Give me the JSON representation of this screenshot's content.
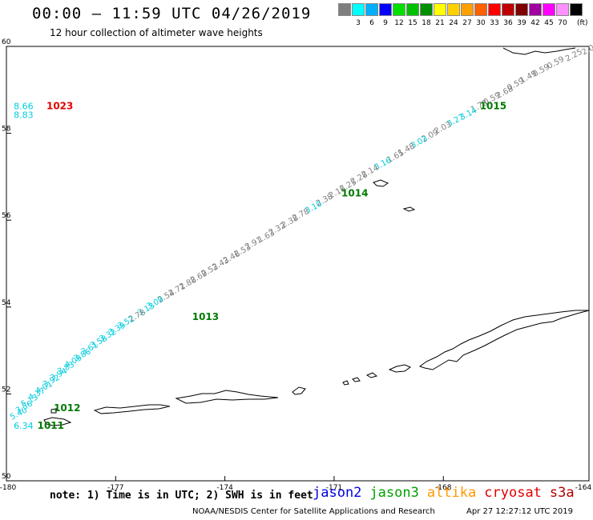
{
  "header": {
    "title": "00:00 – 11:59 UTC 04/26/2019",
    "subtitle": "12 hour collection of altimeter wave heights"
  },
  "color_legend": {
    "unit": "(ft)",
    "bins": [
      {
        "label": "",
        "color": "#7f7f7f"
      },
      {
        "label": "3",
        "color": "#00ffff"
      },
      {
        "label": "6",
        "color": "#00b0ff"
      },
      {
        "label": "9",
        "color": "#0000ff"
      },
      {
        "label": "12",
        "color": "#00e000"
      },
      {
        "label": "15",
        "color": "#00c000"
      },
      {
        "label": "18",
        "color": "#009000"
      },
      {
        "label": "21",
        "color": "#ffff00"
      },
      {
        "label": "24",
        "color": "#ffd000"
      },
      {
        "label": "27",
        "color": "#ffa000"
      },
      {
        "label": "30",
        "color": "#ff6000"
      },
      {
        "label": "33",
        "color": "#ff0000"
      },
      {
        "label": "36",
        "color": "#c00000"
      },
      {
        "label": "39",
        "color": "#800000"
      },
      {
        "label": "42",
        "color": "#a000a0"
      },
      {
        "label": "45",
        "color": "#ff00ff"
      },
      {
        "label": "70",
        "color": "#ff90ff"
      },
      {
        "label": "",
        "color": "#000000"
      }
    ]
  },
  "map": {
    "lon_range": [
      -180,
      -164
    ],
    "lat_range": [
      50,
      60
    ],
    "lon_ticks": [
      "-180",
      "-177",
      "-174",
      "-171",
      "-168",
      "-164"
    ],
    "lat_ticks": [
      "60",
      "58",
      "56",
      "54",
      "52",
      "50"
    ],
    "colors": {
      "gray": "#808080",
      "cyan": "#00ccdd",
      "green": "#007a00",
      "red": "#e00000"
    },
    "pressure_labels": [
      {
        "text": "1023",
        "lon": -178.9,
        "lat": 58.55,
        "color": "red"
      },
      {
        "text": "1015",
        "lon": -167.0,
        "lat": 58.55,
        "color": "green"
      },
      {
        "text": "1014",
        "lon": -170.8,
        "lat": 56.55,
        "color": "green"
      },
      {
        "text": "1013",
        "lon": -174.9,
        "lat": 53.7,
        "color": "green"
      },
      {
        "text": "1012",
        "lon": -178.7,
        "lat": 51.6,
        "color": "green"
      },
      {
        "text": "1011",
        "lon": -179.15,
        "lat": 51.2,
        "color": "green"
      }
    ],
    "edge_values": [
      {
        "text": "8.66",
        "lon": -179.8,
        "lat": 58.55,
        "color": "cyan"
      },
      {
        "text": "8.83",
        "lon": -179.8,
        "lat": 58.35,
        "color": "cyan"
      },
      {
        "text": "6.34",
        "lon": -179.8,
        "lat": 51.2,
        "color": "cyan"
      }
    ],
    "track_values": [
      {
        "text": "2.0",
        "lon": -164.15,
        "lat": 59.8,
        "color": "gray"
      },
      {
        "text": "2.25",
        "lon": -164.6,
        "lat": 59.65,
        "color": "gray"
      },
      {
        "text": "0.59",
        "lon": -165.1,
        "lat": 59.48,
        "color": "gray"
      },
      {
        "text": "0.59",
        "lon": -165.5,
        "lat": 59.3,
        "color": "gray"
      },
      {
        "text": "1.49",
        "lon": -165.85,
        "lat": 59.15,
        "color": "gray"
      },
      {
        "text": "0.59",
        "lon": -166.2,
        "lat": 58.98,
        "color": "gray"
      },
      {
        "text": "2.68",
        "lon": -166.5,
        "lat": 58.8,
        "color": "gray"
      },
      {
        "text": "0.59",
        "lon": -166.85,
        "lat": 58.65,
        "color": "gray"
      },
      {
        "text": "1.78",
        "lon": -167.2,
        "lat": 58.48,
        "color": "gray"
      },
      {
        "text": "3.14",
        "lon": -167.5,
        "lat": 58.3,
        "color": "cyan"
      },
      {
        "text": "3.27",
        "lon": -167.85,
        "lat": 58.15,
        "color": "cyan"
      },
      {
        "text": "2.03",
        "lon": -168.2,
        "lat": 57.98,
        "color": "gray"
      },
      {
        "text": "2.09",
        "lon": -168.55,
        "lat": 57.8,
        "color": "gray"
      },
      {
        "text": "3.03",
        "lon": -168.85,
        "lat": 57.65,
        "color": "cyan"
      },
      {
        "text": "1.48",
        "lon": -169.2,
        "lat": 57.48,
        "color": "gray"
      },
      {
        "text": "1.65",
        "lon": -169.5,
        "lat": 57.32,
        "color": "gray"
      },
      {
        "text": "3.16",
        "lon": -169.85,
        "lat": 57.15,
        "color": "cyan"
      },
      {
        "text": "2.14",
        "lon": -170.2,
        "lat": 56.98,
        "color": "gray"
      },
      {
        "text": "2.28",
        "lon": -170.5,
        "lat": 56.82,
        "color": "gray"
      },
      {
        "text": "2.25",
        "lon": -170.8,
        "lat": 56.65,
        "color": "gray"
      },
      {
        "text": "2.16",
        "lon": -171.1,
        "lat": 56.5,
        "color": "gray"
      },
      {
        "text": "2.38",
        "lon": -171.45,
        "lat": 56.32,
        "color": "gray"
      },
      {
        "text": "3.10",
        "lon": -171.75,
        "lat": 56.15,
        "color": "cyan"
      },
      {
        "text": "2.78",
        "lon": -172.1,
        "lat": 55.98,
        "color": "gray"
      },
      {
        "text": "2.38",
        "lon": -172.4,
        "lat": 55.82,
        "color": "gray"
      },
      {
        "text": "2.32",
        "lon": -172.75,
        "lat": 55.65,
        "color": "gray"
      },
      {
        "text": "1.63",
        "lon": -173.05,
        "lat": 55.48,
        "color": "gray"
      },
      {
        "text": "2.91",
        "lon": -173.4,
        "lat": 55.32,
        "color": "gray"
      },
      {
        "text": "2.53",
        "lon": -173.7,
        "lat": 55.15,
        "color": "gray"
      },
      {
        "text": "2.46",
        "lon": -174.0,
        "lat": 55.0,
        "color": "gray"
      },
      {
        "text": "2.43",
        "lon": -174.3,
        "lat": 54.85,
        "color": "gray"
      },
      {
        "text": "2.53",
        "lon": -174.6,
        "lat": 54.7,
        "color": "gray"
      },
      {
        "text": "2.69",
        "lon": -174.9,
        "lat": 54.55,
        "color": "gray"
      },
      {
        "text": "2.88",
        "lon": -175.2,
        "lat": 54.4,
        "color": "gray"
      },
      {
        "text": "2.71",
        "lon": -175.5,
        "lat": 54.25,
        "color": "gray"
      },
      {
        "text": "2.54",
        "lon": -175.8,
        "lat": 54.1,
        "color": "gray"
      },
      {
        "text": "3.09",
        "lon": -176.1,
        "lat": 53.95,
        "color": "cyan"
      },
      {
        "text": "3.13",
        "lon": -176.35,
        "lat": 53.8,
        "color": "cyan"
      },
      {
        "text": "2.78",
        "lon": -176.6,
        "lat": 53.65,
        "color": "gray"
      },
      {
        "text": "3.52",
        "lon": -176.9,
        "lat": 53.5,
        "color": "cyan"
      },
      {
        "text": "3.39",
        "lon": -177.15,
        "lat": 53.35,
        "color": "cyan"
      },
      {
        "text": "3.32",
        "lon": -177.4,
        "lat": 53.2,
        "color": "cyan"
      },
      {
        "text": "3.58",
        "lon": -177.65,
        "lat": 53.05,
        "color": "cyan"
      },
      {
        "text": "3.61",
        "lon": -177.9,
        "lat": 52.9,
        "color": "cyan"
      },
      {
        "text": "3.86",
        "lon": -178.1,
        "lat": 52.75,
        "color": "cyan"
      },
      {
        "text": "4.09",
        "lon": -178.35,
        "lat": 52.6,
        "color": "cyan"
      },
      {
        "text": "3.83",
        "lon": -178.55,
        "lat": 52.45,
        "color": "cyan"
      },
      {
        "text": "3.94",
        "lon": -178.75,
        "lat": 52.3,
        "color": "cyan"
      },
      {
        "text": "3.92",
        "lon": -178.95,
        "lat": 52.15,
        "color": "cyan"
      },
      {
        "text": "4.01",
        "lon": -179.15,
        "lat": 52.0,
        "color": "cyan"
      },
      {
        "text": "4.37",
        "lon": -179.35,
        "lat": 51.85,
        "color": "cyan"
      },
      {
        "text": "5.13",
        "lon": -179.55,
        "lat": 51.7,
        "color": "cyan"
      },
      {
        "text": "3.56",
        "lon": -179.7,
        "lat": 51.55,
        "color": "cyan"
      },
      {
        "text": "5.40",
        "lon": -179.85,
        "lat": 51.4,
        "color": "cyan"
      }
    ]
  },
  "footer": {
    "note": "note: 1) Time is in UTC; 2) SWH is in feet",
    "satellites": [
      {
        "name": "jason2",
        "color": "#0000e0"
      },
      {
        "name": "jason3",
        "color": "#00a000"
      },
      {
        "name": "altika",
        "color": "#ff9900"
      },
      {
        "name": "cryosat",
        "color": "#e00000"
      },
      {
        "name": "s3a",
        "color": "#b00000"
      }
    ],
    "credit": "NOAA/NESDIS Center for Satellite Applications and Research",
    "timestamp": "Apr 27 12:27:12 UTC 2019"
  }
}
